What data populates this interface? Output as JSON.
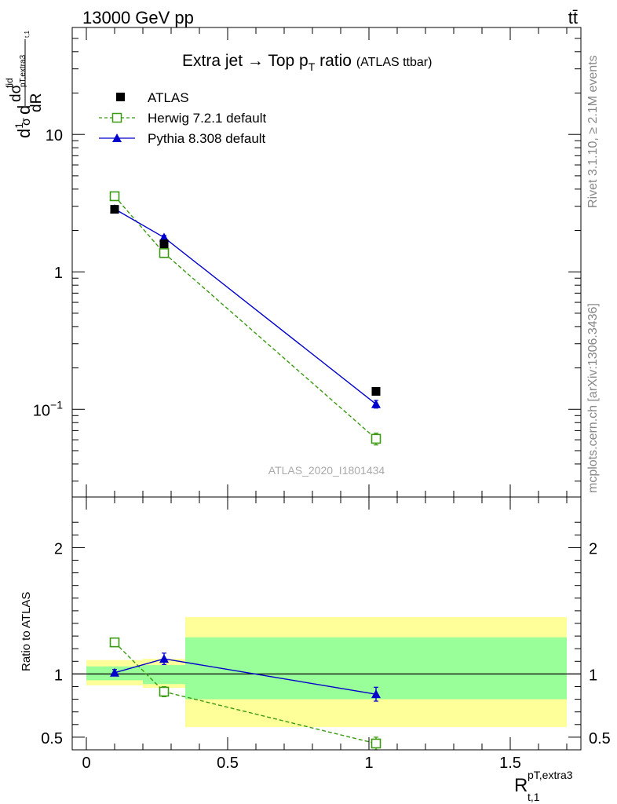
{
  "header": {
    "energy_label": "13000 GeV pp",
    "process_label": "tt̄"
  },
  "side": {
    "rivet_label": "Rivet 3.1.10, ≥ 2.1M events",
    "mcplots_label": "mcplots.cern.ch [arXiv:1306.3436]"
  },
  "watermark": "ATLAS_2020_I1801434",
  "chart_data": [
    {
      "type": "scatter",
      "panel": "main",
      "title": "Extra jet → Top pT ratio (ATLAS ttbar)",
      "title_main": "Extra jet",
      "title_arrow": "→",
      "title_mid": "Top p",
      "title_sub": "T",
      "title_end": "ratio",
      "title_note": "(ATLAS ttbar)",
      "ylabel": "1/σ dσ^fid/dR^pT,extra3_t,1",
      "yscale": "log",
      "ylim": [
        0.023,
        60
      ],
      "xlim": [
        -0.05,
        1.75
      ],
      "yticks": [
        {
          "value": 10,
          "label": "10"
        },
        {
          "value": 1,
          "label": "1"
        },
        {
          "value": 0.1,
          "base": "10",
          "exp": "−1"
        }
      ],
      "legend_position": "top-left",
      "series": [
        {
          "name": "ATLAS",
          "style": "data",
          "color": "#000000",
          "points": [
            {
              "x": 0.1,
              "y": 2.85
            },
            {
              "x": 0.275,
              "y": 1.6
            },
            {
              "x": 1.025,
              "y": 0.135
            }
          ]
        },
        {
          "name": "Herwig 7.2.1 default",
          "style": "dashed-open-square",
          "color": "#3a9a10",
          "points": [
            {
              "x": 0.1,
              "y": 3.55,
              "err": 0.08
            },
            {
              "x": 0.275,
              "y": 1.37,
              "err": 0.06
            },
            {
              "x": 1.025,
              "y": 0.061,
              "err": 0.006
            }
          ]
        },
        {
          "name": "Pythia 8.308 default",
          "style": "solid-triangle",
          "color": "#0000cc",
          "points": [
            {
              "x": 0.1,
              "y": 2.87,
              "err": 0.08
            },
            {
              "x": 0.275,
              "y": 1.78,
              "err": 0.06
            },
            {
              "x": 1.025,
              "y": 0.109,
              "err": 0.007
            }
          ]
        }
      ]
    },
    {
      "type": "scatter",
      "panel": "ratio",
      "ylabel": "Ratio to ATLAS",
      "ylim": [
        0.4,
        2.4
      ],
      "xlim": [
        -0.05,
        1.75
      ],
      "yticks": [
        {
          "value": 0.5,
          "label": "0.5"
        },
        {
          "value": 1,
          "label": "1"
        },
        {
          "value": 2,
          "label": "2"
        }
      ],
      "xticks": [
        {
          "value": 0,
          "label": "0"
        },
        {
          "value": 0.5,
          "label": "0.5"
        },
        {
          "value": 1,
          "label": "1"
        },
        {
          "value": 1.5,
          "label": "1.5"
        }
      ],
      "xlabel_main": "R",
      "xlabel_sup": "pT,extra3",
      "xlabel_sub": "t,1",
      "bands": [
        {
          "x0": 0.0,
          "x1": 0.2,
          "yellow": [
            0.91,
            1.11
          ],
          "green": [
            0.95,
            1.06
          ]
        },
        {
          "x0": 0.2,
          "x1": 0.35,
          "yellow": [
            0.89,
            1.12
          ],
          "green": [
            0.92,
            1.07
          ]
        },
        {
          "x0": 0.35,
          "x1": 1.7,
          "yellow": [
            0.58,
            1.45
          ],
          "green": [
            0.8,
            1.29
          ]
        }
      ],
      "series": [
        {
          "name": "Herwig 7.2.1 default",
          "style": "dashed-open-square",
          "color": "#3a9a10",
          "points": [
            {
              "x": 0.1,
              "y": 1.25,
              "err": 0.03
            },
            {
              "x": 0.275,
              "y": 0.86,
              "err": 0.04
            },
            {
              "x": 1.025,
              "y": 0.45,
              "err": 0.05
            }
          ]
        },
        {
          "name": "Pythia 8.308 default",
          "style": "solid-triangle",
          "color": "#0000cc",
          "points": [
            {
              "x": 0.1,
              "y": 1.01,
              "err": 0.025
            },
            {
              "x": 0.275,
              "y": 1.12,
              "err": 0.045
            },
            {
              "x": 1.025,
              "y": 0.84,
              "err": 0.055
            }
          ]
        }
      ]
    }
  ]
}
